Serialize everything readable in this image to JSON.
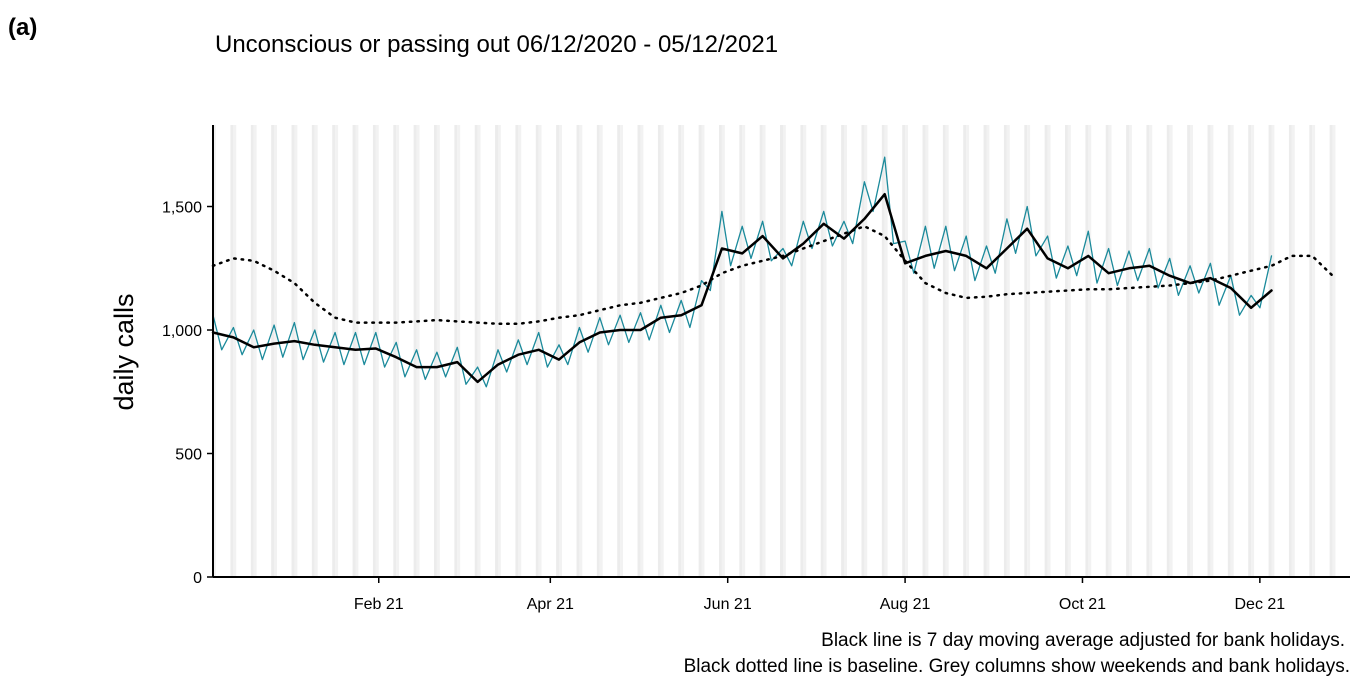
{
  "panel_label": "(a)",
  "chart_data": {
    "type": "line",
    "title": "Unconscious or passing out 06/12/2020 - 05/12/2021",
    "ylabel": "daily calls",
    "notes": [
      "Black line is 7 day moving average adjusted for bank holidays.",
      "Black dotted line is baseline. Grey columns show weekends and bank holidays."
    ],
    "xlim": [
      "2020-12-06",
      "2022-01-01"
    ],
    "xticks": [
      {
        "value": "2021-02-01",
        "label": "Feb 21"
      },
      {
        "value": "2021-04-01",
        "label": "Apr 21"
      },
      {
        "value": "2021-06-01",
        "label": "Jun 21"
      },
      {
        "value": "2021-08-01",
        "label": "Aug 21"
      },
      {
        "value": "2021-10-01",
        "label": "Oct 21"
      },
      {
        "value": "2021-12-01",
        "label": "Dec 21"
      }
    ],
    "ylim": [
      0,
      1830
    ],
    "yticks": [
      0,
      500,
      {
        "value": 1000,
        "label": "1,000"
      },
      {
        "value": 1500,
        "label": "1,500"
      }
    ],
    "weekend_columns": true,
    "series": [
      {
        "color": "#1b8a9b",
        "style": "solid",
        "x": [
          "2020-12-06",
          "2020-12-09",
          "2020-12-13",
          "2020-12-16",
          "2020-12-20",
          "2020-12-23",
          "2020-12-27",
          "2020-12-30",
          "2021-01-03",
          "2021-01-06",
          "2021-01-10",
          "2021-01-13",
          "2021-01-17",
          "2021-01-20",
          "2021-01-24",
          "2021-01-27",
          "2021-01-31",
          "2021-02-03",
          "2021-02-07",
          "2021-02-10",
          "2021-02-14",
          "2021-02-17",
          "2021-02-21",
          "2021-02-24",
          "2021-02-28",
          "2021-03-03",
          "2021-03-07",
          "2021-03-10",
          "2021-03-14",
          "2021-03-17",
          "2021-03-21",
          "2021-03-24",
          "2021-03-28",
          "2021-03-31",
          "2021-04-04",
          "2021-04-07",
          "2021-04-11",
          "2021-04-14",
          "2021-04-18",
          "2021-04-21",
          "2021-04-25",
          "2021-04-28",
          "2021-05-02",
          "2021-05-05",
          "2021-05-09",
          "2021-05-12",
          "2021-05-16",
          "2021-05-19",
          "2021-05-23",
          "2021-05-26",
          "2021-05-30",
          "2021-06-02",
          "2021-06-06",
          "2021-06-09",
          "2021-06-13",
          "2021-06-16",
          "2021-06-20",
          "2021-06-23",
          "2021-06-27",
          "2021-06-30",
          "2021-07-04",
          "2021-07-07",
          "2021-07-11",
          "2021-07-14",
          "2021-07-18",
          "2021-07-21",
          "2021-07-25",
          "2021-07-28",
          "2021-08-01",
          "2021-08-04",
          "2021-08-08",
          "2021-08-11",
          "2021-08-15",
          "2021-08-18",
          "2021-08-22",
          "2021-08-25",
          "2021-08-29",
          "2021-09-01",
          "2021-09-05",
          "2021-09-08",
          "2021-09-12",
          "2021-09-15",
          "2021-09-19",
          "2021-09-22",
          "2021-09-26",
          "2021-09-29",
          "2021-10-03",
          "2021-10-06",
          "2021-10-10",
          "2021-10-13",
          "2021-10-17",
          "2021-10-20",
          "2021-10-24",
          "2021-10-27",
          "2021-10-31",
          "2021-11-03",
          "2021-11-07",
          "2021-11-10",
          "2021-11-14",
          "2021-11-17",
          "2021-11-21",
          "2021-11-24",
          "2021-11-28",
          "2021-12-01",
          "2021-12-05"
        ],
        "values": [
          1060,
          920,
          1010,
          900,
          1000,
          880,
          1020,
          890,
          1030,
          880,
          1000,
          870,
          990,
          860,
          990,
          860,
          990,
          850,
          950,
          810,
          920,
          800,
          910,
          810,
          930,
          780,
          850,
          770,
          920,
          830,
          960,
          860,
          990,
          850,
          940,
          860,
          1010,
          910,
          1050,
          940,
          1060,
          950,
          1070,
          960,
          1100,
          990,
          1120,
          1010,
          1200,
          1160,
          1480,
          1260,
          1420,
          1290,
          1440,
          1280,
          1330,
          1260,
          1440,
          1330,
          1480,
          1340,
          1440,
          1350,
          1600,
          1480,
          1700,
          1350,
          1360,
          1230,
          1420,
          1250,
          1420,
          1240,
          1380,
          1200,
          1340,
          1230,
          1450,
          1310,
          1500,
          1300,
          1380,
          1210,
          1340,
          1220,
          1400,
          1190,
          1330,
          1180,
          1320,
          1200,
          1330,
          1170,
          1290,
          1140,
          1260,
          1150,
          1270,
          1100,
          1220,
          1060,
          1140,
          1090,
          1300
        ]
      },
      {
        "color": "#000000",
        "style": "solid",
        "x": [
          "2020-12-06",
          "2020-12-13",
          "2020-12-20",
          "2020-12-27",
          "2021-01-03",
          "2021-01-10",
          "2021-01-17",
          "2021-01-24",
          "2021-01-31",
          "2021-02-07",
          "2021-02-14",
          "2021-02-21",
          "2021-02-28",
          "2021-03-07",
          "2021-03-14",
          "2021-03-21",
          "2021-03-28",
          "2021-04-04",
          "2021-04-11",
          "2021-04-18",
          "2021-04-25",
          "2021-05-02",
          "2021-05-09",
          "2021-05-16",
          "2021-05-23",
          "2021-05-30",
          "2021-06-06",
          "2021-06-13",
          "2021-06-20",
          "2021-06-27",
          "2021-07-04",
          "2021-07-11",
          "2021-07-18",
          "2021-07-25",
          "2021-08-01",
          "2021-08-08",
          "2021-08-15",
          "2021-08-22",
          "2021-08-29",
          "2021-09-05",
          "2021-09-12",
          "2021-09-19",
          "2021-09-26",
          "2021-10-03",
          "2021-10-10",
          "2021-10-17",
          "2021-10-24",
          "2021-10-31",
          "2021-11-07",
          "2021-11-14",
          "2021-11-21",
          "2021-11-28",
          "2021-12-05"
        ],
        "values": [
          990,
          970,
          930,
          945,
          955,
          940,
          930,
          920,
          925,
          890,
          850,
          850,
          870,
          790,
          860,
          900,
          920,
          880,
          950,
          990,
          1000,
          1000,
          1050,
          1060,
          1100,
          1330,
          1310,
          1380,
          1290,
          1350,
          1430,
          1370,
          1450,
          1550,
          1270,
          1300,
          1320,
          1300,
          1250,
          1330,
          1410,
          1290,
          1250,
          1300,
          1230,
          1250,
          1260,
          1220,
          1190,
          1210,
          1170,
          1090,
          1160
        ]
      },
      {
        "color": "#000000",
        "style": "dotted",
        "x": [
          "2020-12-06",
          "2020-12-13",
          "2020-12-20",
          "2020-12-27",
          "2021-01-03",
          "2021-01-10",
          "2021-01-17",
          "2021-01-24",
          "2021-01-31",
          "2021-02-07",
          "2021-02-14",
          "2021-02-21",
          "2021-02-28",
          "2021-03-07",
          "2021-03-14",
          "2021-03-21",
          "2021-03-28",
          "2021-04-04",
          "2021-04-11",
          "2021-04-18",
          "2021-04-25",
          "2021-05-02",
          "2021-05-09",
          "2021-05-16",
          "2021-05-23",
          "2021-05-30",
          "2021-06-06",
          "2021-06-13",
          "2021-06-20",
          "2021-06-27",
          "2021-07-04",
          "2021-07-11",
          "2021-07-18",
          "2021-07-25",
          "2021-08-01",
          "2021-08-08",
          "2021-08-15",
          "2021-08-22",
          "2021-08-29",
          "2021-09-05",
          "2021-09-12",
          "2021-09-19",
          "2021-09-26",
          "2021-10-03",
          "2021-10-10",
          "2021-10-17",
          "2021-10-24",
          "2021-10-31",
          "2021-11-07",
          "2021-11-14",
          "2021-11-21",
          "2021-11-28",
          "2021-12-05",
          "2021-12-12",
          "2021-12-19",
          "2021-12-26"
        ],
        "values": [
          1260,
          1290,
          1280,
          1240,
          1190,
          1110,
          1050,
          1030,
          1030,
          1030,
          1035,
          1040,
          1035,
          1030,
          1025,
          1025,
          1035,
          1050,
          1060,
          1080,
          1100,
          1110,
          1130,
          1150,
          1180,
          1230,
          1260,
          1280,
          1300,
          1330,
          1360,
          1390,
          1420,
          1380,
          1280,
          1190,
          1150,
          1130,
          1135,
          1145,
          1150,
          1155,
          1160,
          1165,
          1165,
          1170,
          1175,
          1180,
          1190,
          1200,
          1220,
          1240,
          1260,
          1300,
          1300,
          1220
        ]
      }
    ]
  }
}
